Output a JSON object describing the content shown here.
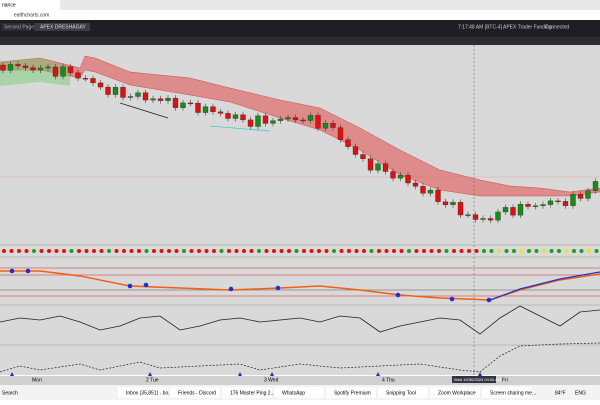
{
  "browser": {
    "tab": "nance",
    "url": "ealthcharts.com"
  },
  "app": {
    "tabs": [
      "Second Page",
      "APEX DRESHAGAY"
    ],
    "status": {
      "time": "7:17:48 AM [BTC-4]",
      "account": "APEX Trader Funding",
      "connection": "Connected"
    }
  },
  "time_axis": {
    "labels": [
      "Mon",
      "2 Tue",
      "3 Wed",
      "4 Thu",
      "Fri"
    ],
    "cursor": "Wed 10/30/2024 04:00 AM"
  },
  "taskbar": {
    "search": "Search",
    "items": [
      "Inbox (35,851) - bo...",
      "Friends - Discord",
      "176 Master Ping 2...",
      "WhatsApp",
      "Spotify Premium",
      "Snipping Tool",
      "Zoom Workplace",
      "Screen sharing me..."
    ],
    "weather": "84°F",
    "lang": "ENG"
  }
}
